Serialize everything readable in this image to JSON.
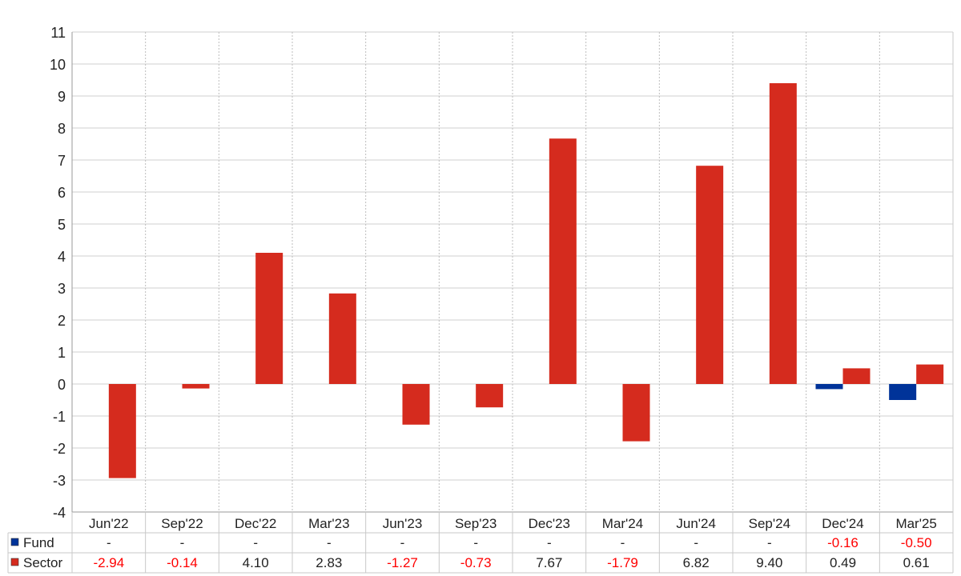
{
  "chart_data": {
    "type": "bar",
    "categories": [
      "Jun'22",
      "Sep'22",
      "Dec'22",
      "Mar'23",
      "Jun'23",
      "Sep'23",
      "Dec'23",
      "Mar'24",
      "Jun'24",
      "Sep'24",
      "Dec'24",
      "Mar'25"
    ],
    "series": [
      {
        "name": "Fund",
        "color": "#003399",
        "values": [
          null,
          null,
          null,
          null,
          null,
          null,
          null,
          null,
          null,
          null,
          -0.16,
          -0.5
        ],
        "labels": [
          "-",
          "-",
          "-",
          "-",
          "-",
          "-",
          "-",
          "-",
          "-",
          "-",
          "-0.16",
          "-0.50"
        ]
      },
      {
        "name": "Sector",
        "color": "#d52b1e",
        "values": [
          -2.94,
          -0.14,
          4.1,
          2.83,
          -1.27,
          -0.73,
          7.67,
          -1.79,
          6.82,
          9.4,
          0.49,
          0.61
        ],
        "labels": [
          "-2.94",
          "-0.14",
          "4.10",
          "2.83",
          "-1.27",
          "-0.73",
          "7.67",
          "-1.79",
          "6.82",
          "9.40",
          "0.49",
          "0.61"
        ]
      }
    ],
    "yticks": [
      "11",
      "10",
      "9",
      "8",
      "7",
      "6",
      "5",
      "4",
      "3",
      "2",
      "1",
      "0",
      "-1",
      "-2",
      "-3",
      "-4"
    ],
    "ylim": [
      -4,
      11
    ],
    "grid": true,
    "legend": "table-bottom",
    "negative_label_color": "#ff0000",
    "positive_label_color": "#222222"
  }
}
